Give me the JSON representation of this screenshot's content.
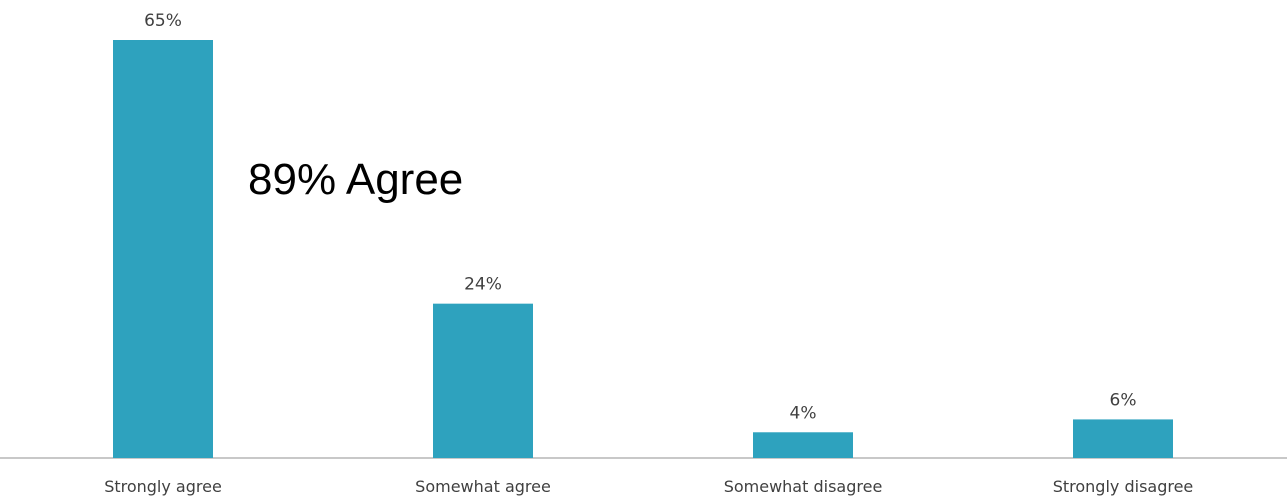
{
  "chart_data": {
    "type": "bar",
    "categories": [
      "Strongly agree",
      "Somewhat agree",
      "Somewhat disagree",
      "Strongly disagree"
    ],
    "values": [
      65,
      24,
      4,
      6
    ],
    "value_labels": [
      "65%",
      "24%",
      "4%",
      "6%"
    ],
    "unit": "%",
    "ylim": [
      0,
      65
    ],
    "annotation": "89% Agree",
    "title": "",
    "xlabel": "",
    "ylabel": "",
    "grid": false,
    "legend": "none",
    "bar_color": "#2ea2be",
    "axis_color": "#c8c8c8",
    "label_color": "#404040"
  }
}
